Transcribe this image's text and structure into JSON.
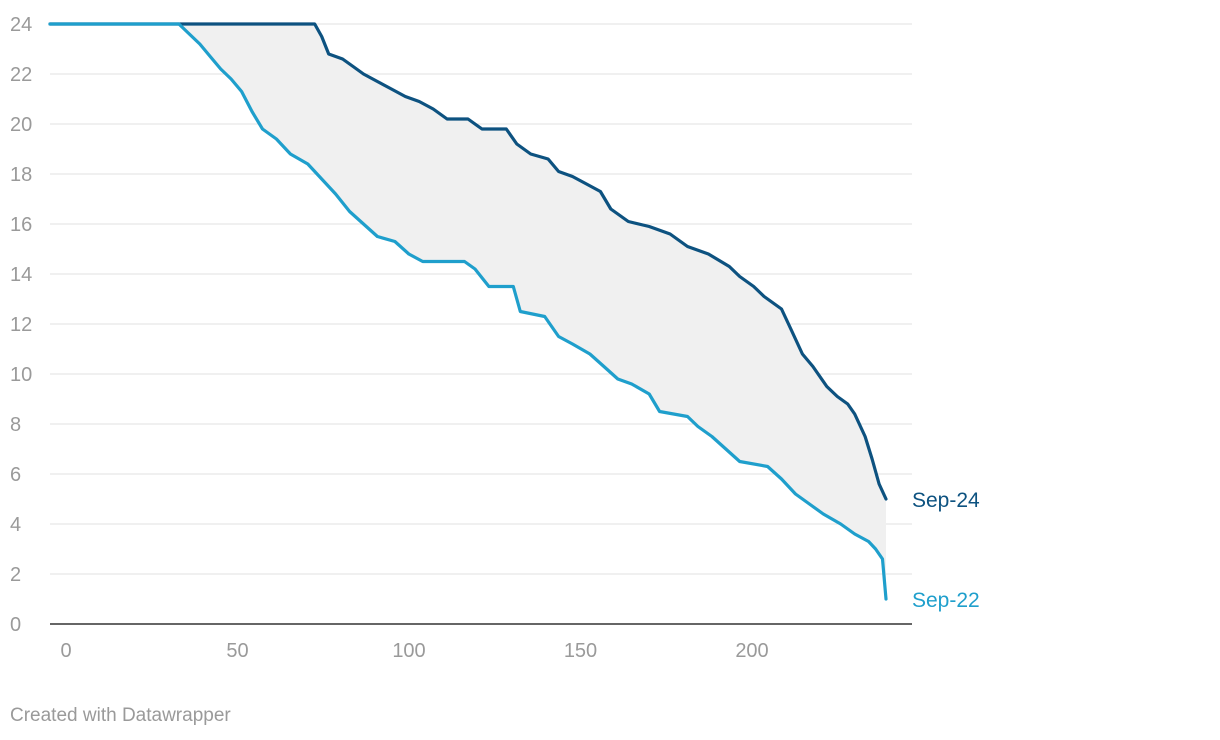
{
  "chart_data": {
    "type": "line",
    "title": "",
    "xlabel": "",
    "ylabel": "",
    "xlim": [
      0,
      242
    ],
    "ylim": [
      0,
      24
    ],
    "x_ticks": [
      0,
      50,
      100,
      150,
      200
    ],
    "y_ticks": [
      0,
      2,
      4,
      6,
      8,
      10,
      12,
      14,
      16,
      18,
      20,
      22,
      24
    ],
    "grid": true,
    "shaded_range_between_series": true,
    "colors": {
      "upper": "#0d5280",
      "lower": "#1f9fcc",
      "band": "#f0f0f0",
      "grid": "#e1e1e1",
      "axis": "#333333",
      "tick": "#9a9a9a"
    },
    "series": [
      {
        "name": "Sep-24",
        "color": "#0d5280",
        "points": [
          [
            0,
            24
          ],
          [
            76,
            24
          ],
          [
            78,
            23.5
          ],
          [
            80,
            22.8
          ],
          [
            84,
            22.6
          ],
          [
            87,
            22.3
          ],
          [
            90,
            22
          ],
          [
            94,
            21.7
          ],
          [
            98,
            21.4
          ],
          [
            102,
            21.1
          ],
          [
            106,
            20.9
          ],
          [
            110,
            20.6
          ],
          [
            114,
            20.2
          ],
          [
            120,
            20.2
          ],
          [
            124,
            19.8
          ],
          [
            131,
            19.8
          ],
          [
            134,
            19.2
          ],
          [
            138,
            18.8
          ],
          [
            143,
            18.6
          ],
          [
            146,
            18.1
          ],
          [
            150,
            17.9
          ],
          [
            154,
            17.6
          ],
          [
            158,
            17.3
          ],
          [
            161,
            16.6
          ],
          [
            166,
            16.1
          ],
          [
            172,
            15.9
          ],
          [
            178,
            15.6
          ],
          [
            183,
            15.1
          ],
          [
            189,
            14.8
          ],
          [
            195,
            14.3
          ],
          [
            198,
            13.9
          ],
          [
            202,
            13.5
          ],
          [
            205,
            13.1
          ],
          [
            210,
            12.6
          ],
          [
            213,
            11.7
          ],
          [
            216,
            10.8
          ],
          [
            219,
            10.3
          ],
          [
            223,
            9.5
          ],
          [
            226,
            9.1
          ],
          [
            229,
            8.8
          ],
          [
            231,
            8.4
          ],
          [
            234,
            7.5
          ],
          [
            236,
            6.6
          ],
          [
            238,
            5.6
          ],
          [
            240,
            5
          ]
        ]
      },
      {
        "name": "Sep-22",
        "color": "#1f9fcc",
        "points": [
          [
            0,
            24
          ],
          [
            37,
            24
          ],
          [
            40,
            23.6
          ],
          [
            43,
            23.2
          ],
          [
            46,
            22.7
          ],
          [
            49,
            22.2
          ],
          [
            52,
            21.8
          ],
          [
            55,
            21.3
          ],
          [
            58,
            20.5
          ],
          [
            61,
            19.8
          ],
          [
            65,
            19.4
          ],
          [
            69,
            18.8
          ],
          [
            74,
            18.4
          ],
          [
            78,
            17.8
          ],
          [
            82,
            17.2
          ],
          [
            86,
            16.5
          ],
          [
            90,
            16
          ],
          [
            94,
            15.5
          ],
          [
            99,
            15.3
          ],
          [
            103,
            14.8
          ],
          [
            107,
            14.5
          ],
          [
            119,
            14.5
          ],
          [
            122,
            14.2
          ],
          [
            126,
            13.5
          ],
          [
            133,
            13.5
          ],
          [
            135,
            12.5
          ],
          [
            142,
            12.3
          ],
          [
            146,
            11.5
          ],
          [
            150,
            11.2
          ],
          [
            155,
            10.8
          ],
          [
            159,
            10.3
          ],
          [
            163,
            9.8
          ],
          [
            167,
            9.6
          ],
          [
            172,
            9.2
          ],
          [
            175,
            8.5
          ],
          [
            183,
            8.3
          ],
          [
            186,
            7.9
          ],
          [
            190,
            7.5
          ],
          [
            194,
            7
          ],
          [
            198,
            6.5
          ],
          [
            206,
            6.3
          ],
          [
            210,
            5.8
          ],
          [
            214,
            5.2
          ],
          [
            218,
            4.8
          ],
          [
            222,
            4.4
          ],
          [
            227,
            4
          ],
          [
            231,
            3.6
          ],
          [
            235,
            3.3
          ],
          [
            237,
            3
          ],
          [
            239,
            2.6
          ],
          [
            240,
            1
          ]
        ]
      }
    ]
  },
  "footer": {
    "credit": "Created with Datawrapper"
  }
}
